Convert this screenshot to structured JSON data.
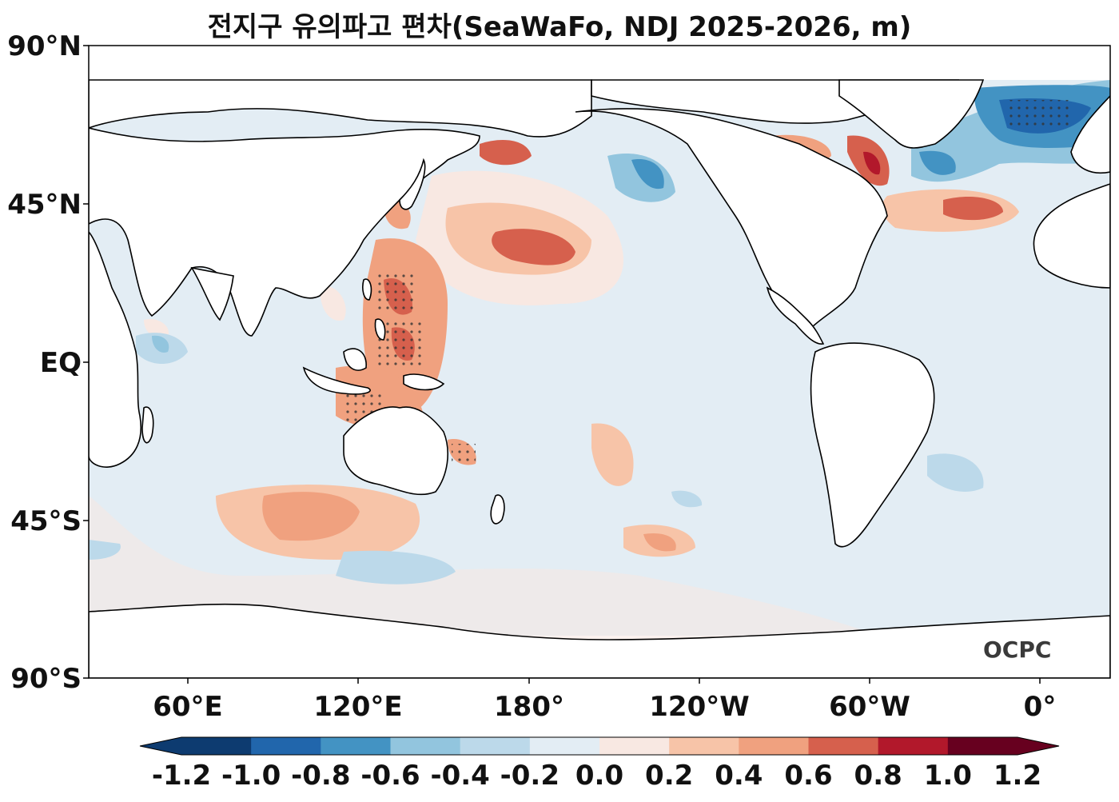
{
  "title": "전지구 유의파고 편차(SeaWaFo, NDJ 2025-2026, m)",
  "logo_text": "OCPC",
  "latitude_labels": [
    "90°N",
    "45°N",
    "EQ",
    "45°S",
    "90°S"
  ],
  "longitude_labels": [
    "60°E",
    "120°E",
    "180°",
    "120°W",
    "60°W",
    "0°"
  ],
  "colorbar": {
    "tick_labels": [
      "-1.2",
      "-1.0",
      "-0.8",
      "-0.6",
      "-0.4",
      "-0.2",
      "0.0",
      "0.2",
      "0.4",
      "0.6",
      "0.8",
      "1.0",
      "1.2"
    ],
    "colors": [
      "#0d3b70",
      "#2166ac",
      "#4393c3",
      "#92c5de",
      "#bcd9ea",
      "#e3edf4",
      "#f8e8e2",
      "#f7c4a8",
      "#f0a17f",
      "#d6604d",
      "#b2182b",
      "#67001f"
    ]
  },
  "palette": {
    "neutral": "#e3edf4",
    "land": "#ffffff",
    "coast": "#000000"
  }
}
